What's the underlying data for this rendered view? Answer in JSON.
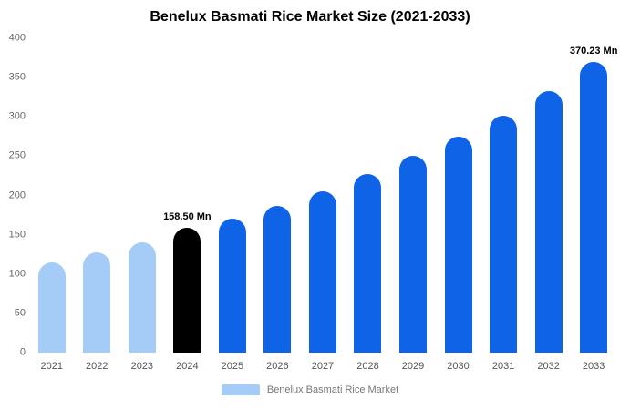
{
  "chart_data": {
    "type": "bar",
    "title": "Benelux Basmati Rice Market Size (2021-2033)",
    "categories": [
      "2021",
      "2022",
      "2023",
      "2024",
      "2025",
      "2026",
      "2027",
      "2028",
      "2029",
      "2030",
      "2031",
      "2032",
      "2033"
    ],
    "values": [
      115,
      127,
      140,
      158.5,
      170,
      187,
      205,
      227,
      250,
      275,
      302,
      333,
      370.23
    ],
    "bar_colors": [
      "#A5CBF7",
      "#A5CBF7",
      "#A5CBF7",
      "#000000",
      "#0E63E6",
      "#0E63E6",
      "#0E63E6",
      "#0E63E6",
      "#0E63E6",
      "#0E63E6",
      "#0E63E6",
      "#0E63E6",
      "#0E63E6"
    ],
    "ylim": [
      0,
      400
    ],
    "ytick_step": 50,
    "grid": false,
    "annotations": [
      {
        "category": "2024",
        "text": "158.50 Mn"
      },
      {
        "category": "2033",
        "text": "370.23 Mn"
      }
    ],
    "legend": {
      "label": "Benelux Basmati Rice Market",
      "position": "bottom",
      "swatch_color": "#A5CBF7"
    }
  }
}
